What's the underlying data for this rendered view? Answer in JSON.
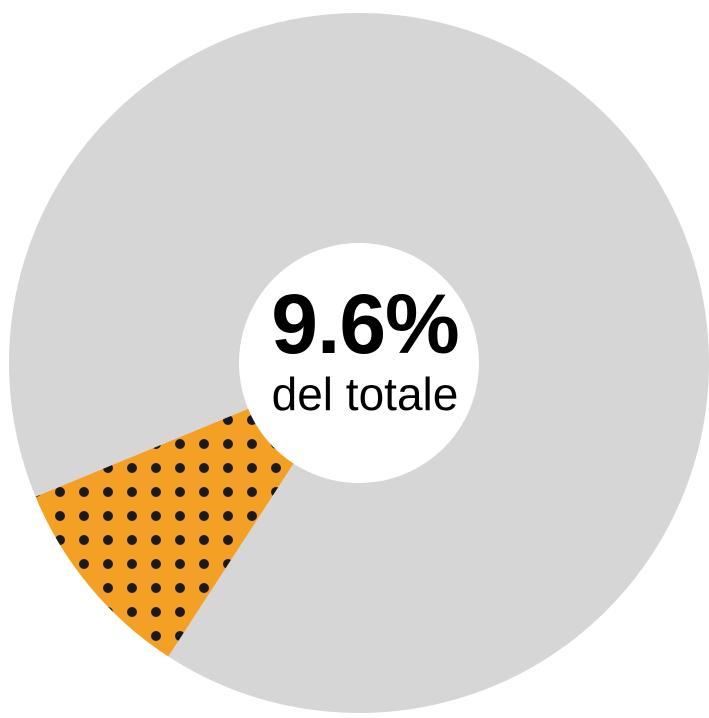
{
  "chart_data": {
    "type": "pie",
    "variant": "donut",
    "slices": [
      {
        "value": 9.6,
        "color": "#f4a024",
        "pattern": "dots",
        "pattern_color": "#1a1a1a"
      },
      {
        "value": 90.4,
        "color": "#d6d6d6"
      }
    ],
    "center_value": "9.6%",
    "center_caption": "del totale",
    "background": "#ffffff"
  }
}
